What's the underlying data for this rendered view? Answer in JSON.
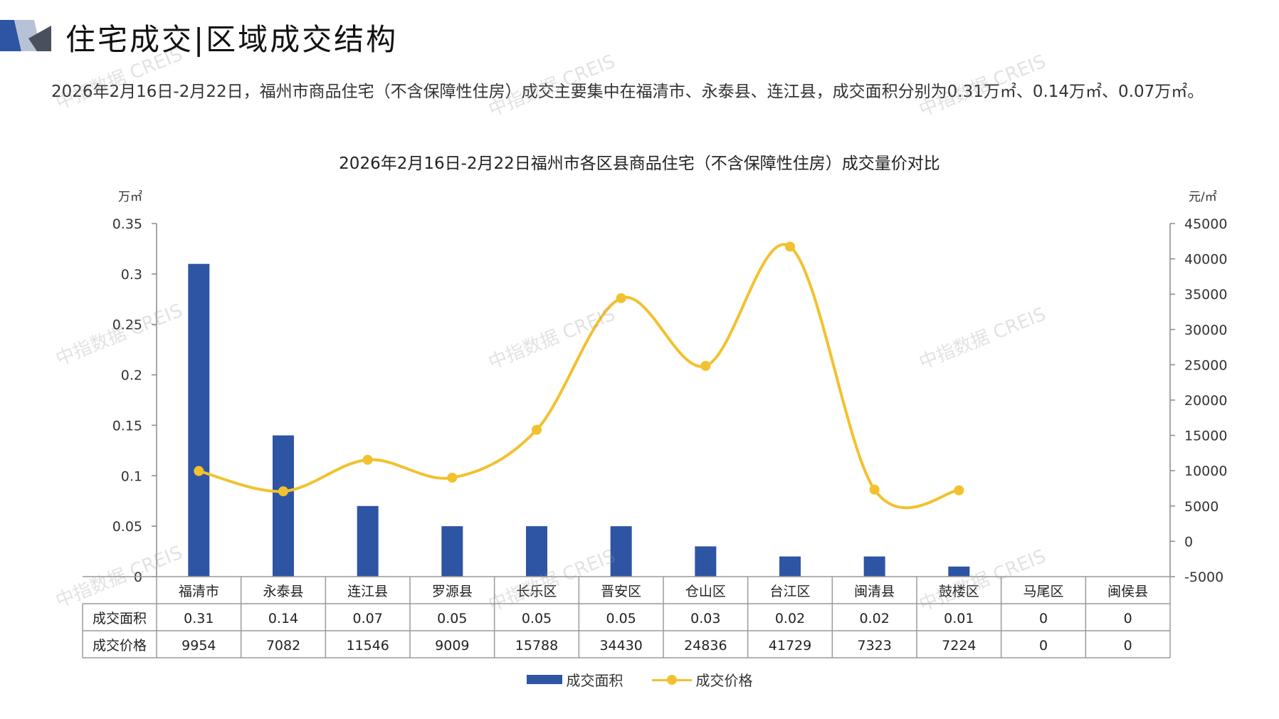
{
  "header": {
    "title": "住宅成交|区域成交结构",
    "summary": "2026年2月16日-2月22日，福州市商品住宅（不含保障性住房）成交主要集中在福清市、永泰县、连江县，成交面积分别为0.31万㎡、0.14万㎡、0.07万㎡。"
  },
  "watermark": "中指数据 CREIS",
  "colors": {
    "bar": "#2e55a4",
    "line": "#f2c12e",
    "accent": "#2e55a4"
  },
  "chart_data": {
    "type": "bar",
    "title": "2026年2月16日-2月22日福州市各区县商品住宅（不含保障性住房）成交量价对比",
    "categories": [
      "福清市",
      "永泰县",
      "连江县",
      "罗源县",
      "长乐区",
      "晋安区",
      "仓山区",
      "台江区",
      "闽清县",
      "鼓楼区",
      "马尾区",
      "闽侯县"
    ],
    "series": [
      {
        "name": "成交面积",
        "type": "bar",
        "axis": "left",
        "values": [
          0.31,
          0.14,
          0.07,
          0.05,
          0.05,
          0.05,
          0.03,
          0.02,
          0.02,
          0.01,
          0,
          0
        ],
        "labels": [
          "0.31",
          "0.14",
          "0.07",
          "0.05",
          "0.05",
          "0.05",
          "0.03",
          "0.02",
          "0.02",
          "0.01",
          "0",
          "0"
        ]
      },
      {
        "name": "成交价格",
        "type": "line",
        "axis": "right",
        "smooth": true,
        "values": [
          9954,
          7082,
          11546,
          9009,
          15788,
          34430,
          24836,
          41729,
          7323,
          7224,
          0,
          0
        ],
        "plotted_count": 10
      }
    ],
    "y_left": {
      "unit": "万㎡",
      "min": 0,
      "max": 0.35,
      "ticks": [
        0,
        0.05,
        0.1,
        0.15,
        0.2,
        0.25,
        0.3,
        0.35
      ],
      "tick_labels": [
        "0",
        "0.05",
        "0.1",
        "0.15",
        "0.2",
        "0.25",
        "0.3",
        "0.35"
      ]
    },
    "y_right": {
      "unit": "元/㎡",
      "min": -5000,
      "max": 45000,
      "ticks": [
        -5000,
        0,
        5000,
        10000,
        15000,
        20000,
        25000,
        30000,
        35000,
        40000,
        45000
      ],
      "tick_labels": [
        "-5000",
        "0",
        "5000",
        "10000",
        "15000",
        "20000",
        "25000",
        "30000",
        "35000",
        "40000",
        "45000"
      ]
    },
    "table": {
      "row_headers": [
        "成交面积",
        "成交价格"
      ]
    },
    "legend": {
      "position": "bottom"
    },
    "grid": false
  }
}
